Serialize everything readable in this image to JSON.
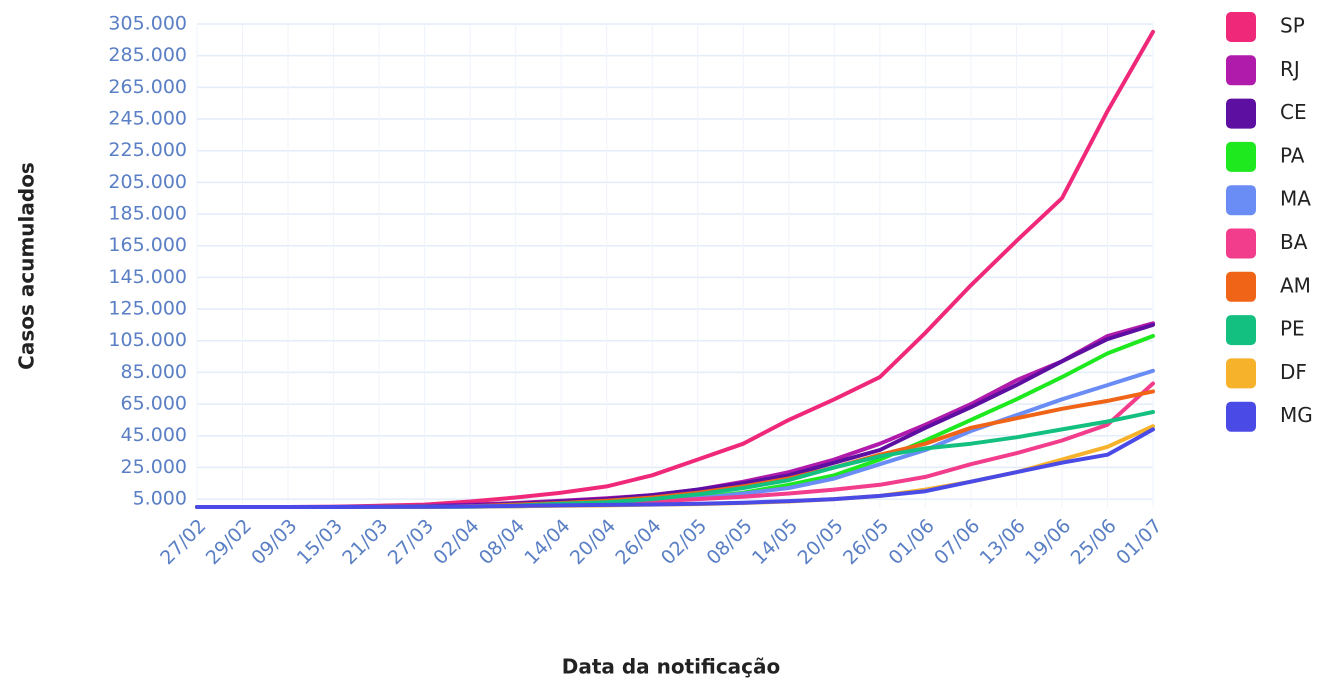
{
  "chart_data": {
    "type": "line",
    "xlabel": "Data da notificação",
    "ylabel": "Casos acumulados",
    "categories": [
      "27/02",
      "29/02",
      "09/03",
      "15/03",
      "21/03",
      "27/03",
      "02/04",
      "08/04",
      "14/04",
      "20/04",
      "26/04",
      "02/05",
      "08/05",
      "14/05",
      "20/05",
      "26/05",
      "01/06",
      "07/06",
      "13/06",
      "19/06",
      "25/06",
      "01/07"
    ],
    "ylim": [
      0,
      305000
    ],
    "yticks": [
      {
        "value": 5000,
        "label": "5.000"
      },
      {
        "value": 25000,
        "label": "25.000"
      },
      {
        "value": 45000,
        "label": "45.000"
      },
      {
        "value": 65000,
        "label": "65.000"
      },
      {
        "value": 85000,
        "label": "85.000"
      },
      {
        "value": 105000,
        "label": "105.000"
      },
      {
        "value": 125000,
        "label": "125.000"
      },
      {
        "value": 145000,
        "label": "145.000"
      },
      {
        "value": 165000,
        "label": "165.000"
      },
      {
        "value": 185000,
        "label": "185.000"
      },
      {
        "value": 205000,
        "label": "205.000"
      },
      {
        "value": 225000,
        "label": "225.000"
      },
      {
        "value": 245000,
        "label": "245.000"
      },
      {
        "value": 265000,
        "label": "265.000"
      },
      {
        "value": 285000,
        "label": "285.000"
      },
      {
        "value": 305000,
        "label": "305.000"
      }
    ],
    "grid": true,
    "legend": "right",
    "series": [
      {
        "name": "SP",
        "color": "#f0287a",
        "values": [
          0,
          0,
          0,
          100,
          800,
          1500,
          3500,
          6000,
          9000,
          13000,
          20000,
          30000,
          40000,
          55000,
          68000,
          82000,
          110000,
          140000,
          168000,
          195000,
          250000,
          300000
        ]
      },
      {
        "name": "RJ",
        "color": "#b01bab",
        "values": [
          0,
          0,
          0,
          50,
          300,
          800,
          1500,
          2500,
          4000,
          5500,
          7500,
          11000,
          16000,
          22000,
          30000,
          40000,
          52000,
          65000,
          80000,
          92000,
          108000,
          116000
        ]
      },
      {
        "name": "CE",
        "color": "#5c0fa0",
        "values": [
          0,
          0,
          0,
          20,
          200,
          500,
          1000,
          2000,
          3500,
          5000,
          7500,
          11000,
          15000,
          20000,
          28000,
          36000,
          50000,
          63000,
          77000,
          92000,
          106000,
          115000
        ]
      },
      {
        "name": "PA",
        "color": "#1ee81e",
        "values": [
          0,
          0,
          0,
          0,
          10,
          50,
          200,
          500,
          1000,
          2000,
          3500,
          6000,
          9000,
          14000,
          20000,
          30000,
          42000,
          55000,
          68000,
          82000,
          97000,
          108000
        ]
      },
      {
        "name": "MA",
        "color": "#6a8cf5",
        "values": [
          0,
          0,
          0,
          0,
          10,
          50,
          200,
          500,
          1000,
          2000,
          3500,
          5500,
          8500,
          12000,
          18000,
          27000,
          36000,
          48000,
          58000,
          68000,
          77000,
          86000
        ]
      },
      {
        "name": "BA",
        "color": "#f23c8c",
        "values": [
          0,
          0,
          0,
          0,
          50,
          200,
          400,
          800,
          1500,
          2500,
          3500,
          5000,
          6500,
          8500,
          11000,
          14000,
          19000,
          27000,
          34000,
          42000,
          52000,
          78000
        ]
      },
      {
        "name": "AM",
        "color": "#f06418",
        "values": [
          0,
          0,
          0,
          0,
          10,
          100,
          500,
          1500,
          2500,
          4000,
          6000,
          9000,
          13000,
          18000,
          25000,
          33000,
          40000,
          50000,
          56000,
          62000,
          67000,
          73000
        ]
      },
      {
        "name": "PE",
        "color": "#14c080",
        "values": [
          0,
          0,
          0,
          0,
          20,
          100,
          300,
          900,
          2000,
          3000,
          5000,
          8000,
          12000,
          17000,
          25000,
          32000,
          37000,
          40000,
          44000,
          49000,
          54000,
          60000
        ]
      },
      {
        "name": "DF",
        "color": "#f7b22c",
        "values": [
          0,
          0,
          0,
          0,
          50,
          200,
          350,
          500,
          800,
          1000,
          1500,
          1800,
          2500,
          3500,
          5000,
          7000,
          11000,
          16000,
          22000,
          30000,
          38000,
          51000
        ]
      },
      {
        "name": "MG",
        "color": "#4a4ae6",
        "values": [
          0,
          0,
          0,
          0,
          50,
          200,
          400,
          700,
          1000,
          1300,
          1600,
          2000,
          2700,
          3700,
          5000,
          7000,
          10000,
          16000,
          22000,
          28000,
          33000,
          49000
        ]
      }
    ]
  }
}
